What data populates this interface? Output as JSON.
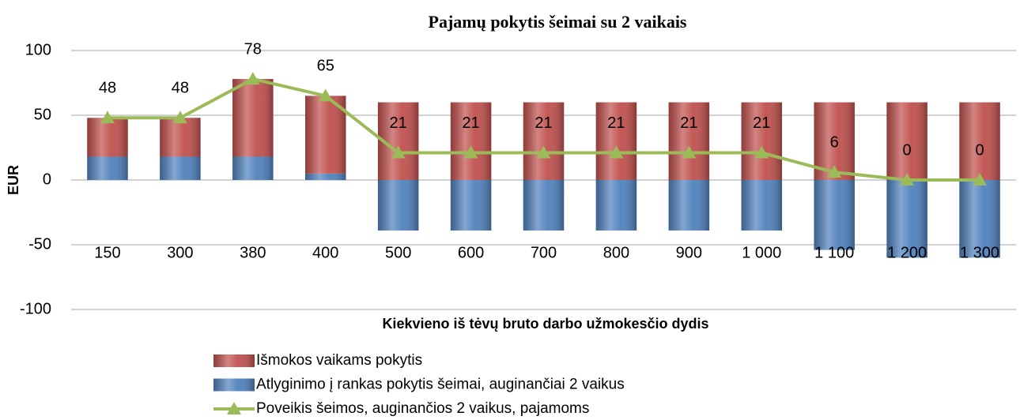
{
  "chart_data": {
    "type": "bar",
    "title": "Pajamų pokytis šeimai su 2 vaikais",
    "y_label": "EUR",
    "x_label": "Kiekvieno iš tėvų bruto darbo užmokesčio dydis",
    "categories": [
      "150",
      "300",
      "380",
      "400",
      "500",
      "600",
      "700",
      "800",
      "900",
      "1 000",
      "1 100",
      "1 200",
      "1 300"
    ],
    "series": [
      {
        "name": "Išmokos vaikams pokytis",
        "type": "bar",
        "color": "#c0504d",
        "values": [
          30,
          30,
          60,
          60,
          60,
          60,
          60,
          60,
          60,
          60,
          60,
          60,
          60
        ]
      },
      {
        "name": "Atlyginimo į rankas pokytis šeimai, auginančiai 2 vaikus",
        "type": "bar",
        "color": "#4f81bd",
        "values": [
          18,
          18,
          18,
          5,
          -39,
          -39,
          -39,
          -39,
          -39,
          -39,
          -54,
          -60,
          -60
        ]
      },
      {
        "name": "Poveikis šeimos, auginančios  2 vaikus, pajamoms",
        "type": "line",
        "color": "#9bbb59",
        "values": [
          48,
          48,
          78,
          65,
          21,
          21,
          21,
          21,
          21,
          21,
          6,
          0,
          0
        ]
      }
    ],
    "stacked": true,
    "data_labels_series": 2,
    "ylim": [
      -100,
      100
    ],
    "yticks": [
      -100,
      -50,
      0,
      50,
      100
    ],
    "grid": true,
    "legend": "bottom"
  }
}
